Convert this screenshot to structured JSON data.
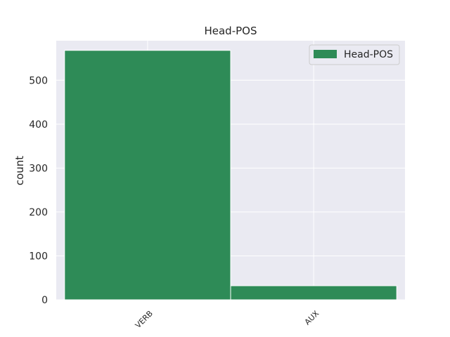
{
  "chart_data": {
    "type": "bar",
    "title": "Head-POS",
    "xlabel": "",
    "ylabel": "count",
    "categories": [
      "VERB",
      "AUX"
    ],
    "series": [
      {
        "name": "Head-POS",
        "values": [
          568,
          32
        ]
      }
    ],
    "ylim": [
      0,
      590
    ],
    "yticks": [
      0,
      100,
      200,
      300,
      400,
      500
    ],
    "grid": true,
    "legend": "top-right",
    "colors": {
      "bar": "#2e8b57",
      "background": "#eaeaf2",
      "grid": "#ffffff"
    }
  }
}
